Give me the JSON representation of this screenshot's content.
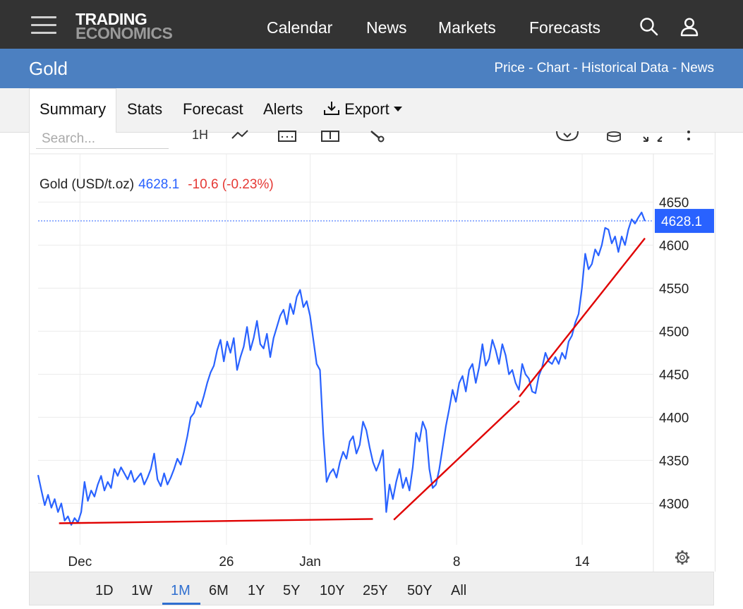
{
  "header": {
    "logo_line1": "TRADING",
    "logo_line2": "ECONOMICS",
    "nav": [
      "Calendar",
      "News",
      "Markets",
      "Forecasts"
    ]
  },
  "subheader": {
    "title": "Gold",
    "links": [
      "Price",
      "Chart",
      "Historical Data",
      "News"
    ]
  },
  "tabs": [
    {
      "label": "Summary",
      "active": true
    },
    {
      "label": "Stats"
    },
    {
      "label": "Forecast"
    },
    {
      "label": "Alerts"
    },
    {
      "label": "Export"
    }
  ],
  "toolbar": {
    "search_placeholder": "Search...",
    "interval_label": "1H"
  },
  "quote": {
    "name": "Gold (USD/t.oz)",
    "price": "4628.1",
    "change": "-10.6 (-0.23%)",
    "price_color": "#2962ff",
    "change_color": "#e53935"
  },
  "ranges": [
    {
      "label": "1D"
    },
    {
      "label": "1W"
    },
    {
      "label": "1M",
      "active": true
    },
    {
      "label": "6M"
    },
    {
      "label": "1Y"
    },
    {
      "label": "5Y"
    },
    {
      "label": "10Y"
    },
    {
      "label": "25Y"
    },
    {
      "label": "50Y"
    },
    {
      "label": "All"
    }
  ],
  "chart_data": {
    "type": "line",
    "ylim": [
      4252,
      4706
    ],
    "y_ticks": [
      4300,
      4350,
      4400,
      4450,
      4500,
      4550,
      4600,
      4650
    ],
    "x_ticks": [
      "Dec",
      "26",
      "Jan",
      "8",
      "14"
    ],
    "last_value": 4628.1,
    "line_color": "#2962ff",
    "trendline_color": "#e00000",
    "series": [
      {
        "values": [
          4333,
          4315,
          4298,
          4310,
          4295,
          4305,
          4290,
          4300,
          4280,
          4285,
          4275,
          4283,
          4278,
          4290,
          4325,
          4303,
          4315,
          4308,
          4322,
          4332,
          4315,
          4325,
          4318,
          4340,
          4332,
          4342,
          4335,
          4328,
          4338,
          4325,
          4330,
          4335,
          4322,
          4330,
          4340,
          4358,
          4328,
          4320,
          4335,
          4322,
          4330,
          4340,
          4352,
          4345,
          4360,
          4378,
          4400,
          4405,
          4418,
          4412,
          4425,
          4440,
          4452,
          4460,
          4478,
          4490,
          4465,
          4488,
          4475,
          4492,
          4455,
          4470,
          4482,
          4505,
          4478,
          4492,
          4512,
          4485,
          4480,
          4497,
          4470,
          4492,
          4505,
          4518,
          4525,
          4508,
          4532,
          4520,
          4540,
          4548,
          4528,
          4535,
          4518,
          4490,
          4462,
          4455,
          4380,
          4325,
          4335,
          4340,
          4330,
          4348,
          4360,
          4352,
          4372,
          4378,
          4358,
          4368,
          4395,
          4385,
          4365,
          4348,
          4338,
          4348,
          4362,
          4290,
          4322,
          4305,
          4325,
          4340,
          4318,
          4330,
          4315,
          4342,
          4382,
          4372,
          4395,
          4385,
          4340,
          4318,
          4322,
          4340,
          4365,
          4390,
          4410,
          4432,
          4418,
          4440,
          4448,
          4430,
          4455,
          4462,
          4440,
          4458,
          4485,
          4460,
          4468,
          4490,
          4478,
          4462,
          4485,
          4472,
          4450,
          4455,
          4440,
          4432,
          4462,
          4450,
          4445,
          4430,
          4428,
          4448,
          4458,
          4475,
          4465,
          4462,
          4470,
          4462,
          4475,
          4468,
          4488,
          4495,
          4510,
          4520,
          4550,
          4590,
          4572,
          4578,
          4595,
          4588,
          4600,
          4620,
          4618,
          4602,
          4610,
          4592,
          4610,
          4600,
          4618,
          4630,
          4625,
          4632,
          4638,
          4628
        ]
      },
      {
        "name": "trendlines",
        "segments": [
          [
            [
              1,
              4277
            ],
            [
              16,
              4282
            ]
          ],
          [
            [
              17,
              4281
            ],
            [
              23,
              4419
            ]
          ],
          [
            [
              23,
              4424
            ],
            [
              29,
              4608
            ]
          ]
        ]
      }
    ]
  }
}
